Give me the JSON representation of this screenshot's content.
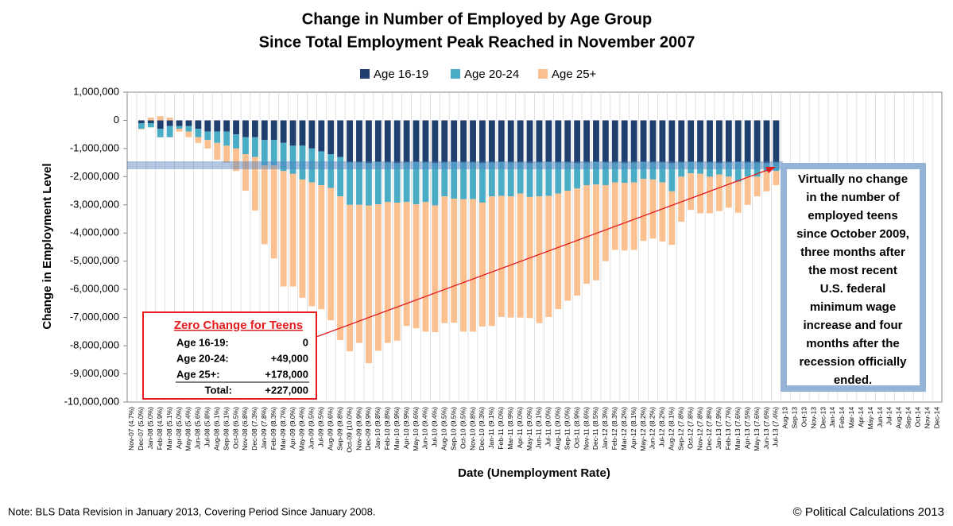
{
  "chart_data": {
    "type": "stacked_bar",
    "title": [
      "Change in Number of Employed by Age Group",
      "Since Total Employment Peak Reached in November 2007"
    ],
    "xlabel": "Date (Unemployment Rate)",
    "ylabel": "Change in Employment Level",
    "note": "Note: BLS Data Revision in January 2013, Covering Period Since January 2008.",
    "credit": "© Political Calculations 2013",
    "categories": [
      "Nov-07 (4.7%)",
      "Dec-07 (5.0%)",
      "Jan-08 (5.0%)",
      "Feb-08 (4.9%)",
      "Mar-08 (5.1%)",
      "Apr-08 (5.0%)",
      "May-08 (5.4%)",
      "Jun-08 (5.6%)",
      "Jul-08 (5.8%)",
      "Aug-08 (6.1%)",
      "Sep-08 (6.1%)",
      "Oct-08 (6.5%)",
      "Nov-08 (6.8%)",
      "Dec-08 (7.3%)",
      "Jan-09 (7.8%)",
      "Feb-09 (8.3%)",
      "Mar-09 (8.7%)",
      "Apr-09 (9.0%)",
      "May-09 (9.4%)",
      "Jun-09 (9.5%)",
      "Jul-09 (9.5%)",
      "Aug-09 (9.6%)",
      "Sep-09 (9.8%)",
      "Oct-09 (10.0%)",
      "Nov-09 (9.9%)",
      "Dec-09 (9.9%)",
      "Jan-10 (9.8%)",
      "Feb-10 (9.8%)",
      "Mar-10 (9.9%)",
      "Apr-10 (9.9%)",
      "May-10 (9.6%)",
      "Jun-10 (9.4%)",
      "Jul-10 (9.4%)",
      "Aug-10 (9.5%)",
      "Sep-10 (9.5%)",
      "Oct-10 (9.5%)",
      "Nov-10 (9.8%)",
      "Dec-10 (9.3%)",
      "Jan-11 (9.1%)",
      "Feb-11 (9.0%)",
      "Mar-11 (8.9%)",
      "Apr-11 (9.0%)",
      "May-11 (9.0%)",
      "Jun-11 (9.1%)",
      "Jul-11 (9.0%)",
      "Aug-11 (9.0%)",
      "Sep-11 (9.0%)",
      "Oct-11 (8.9%)",
      "Nov-11 (8.6%)",
      "Dec-11 (8.5%)",
      "Jan-12 (8.3%)",
      "Feb-12 (8.3%)",
      "Mar-12 (8.2%)",
      "Apr-12 (8.1%)",
      "May-12 (8.2%)",
      "Jun-12 (8.2%)",
      "Jul-12 (8.2%)",
      "Aug-12 (8.1%)",
      "Sep-12 (7.8%)",
      "Oct-12 (7.8%)",
      "Nov-12 (7.8%)",
      "Dec-12 (7.8%)",
      "Jan-13 (7.9%)",
      "Feb-13 (7.7%)",
      "Mar-13 (7.6%)",
      "Apr-13 (7.5%)",
      "May-13 (7.6%)",
      "Jun-13 (7.6%)",
      "Jul-13 (7.4%)",
      "Aug-13",
      "Sep-13",
      "Oct-13",
      "Nov-13",
      "Dec-13",
      "Jan-14",
      "Feb-14",
      "Mar-14",
      "Apr-14",
      "May-14",
      "Jun-14",
      "Jul-14",
      "Aug-14",
      "Sep-14",
      "Oct-14",
      "Nov-14",
      "Dec-14"
    ],
    "series": [
      {
        "name": "Age 16-19",
        "color": "#1f3f6e",
        "values": [
          0,
          -100000,
          -100000,
          -300000,
          -200000,
          -200000,
          -200000,
          -300000,
          -400000,
          -400000,
          -400000,
          -500000,
          -600000,
          -600000,
          -700000,
          -700000,
          -800000,
          -900000,
          -900000,
          -1000000,
          -1100000,
          -1200000,
          -1300000,
          -1500000,
          -1500000,
          -1520000,
          -1480000,
          -1500000,
          -1520000,
          -1500000,
          -1480000,
          -1500000,
          -1520000,
          -1500000,
          -1480000,
          -1500000,
          -1500000,
          -1520000,
          -1500000,
          -1480000,
          -1500000,
          -1500000,
          -1520000,
          -1500000,
          -1480000,
          -1500000,
          -1500000,
          -1520000,
          -1500000,
          -1480000,
          -1500000,
          -1500000,
          -1520000,
          -1500000,
          -1480000,
          -1500000,
          -1500000,
          -1520000,
          -1500000,
          -1480000,
          -1500000,
          -1500000,
          -1520000,
          -1500000,
          -1480000,
          -1500000,
          -1500000,
          -1520000,
          -1500000,
          null,
          null,
          null,
          null,
          null,
          null,
          null,
          null,
          null,
          null,
          null,
          null,
          null,
          null,
          null,
          null,
          null
        ]
      },
      {
        "name": "Age 20-24",
        "color": "#4bacc6",
        "values": [
          0,
          -200000,
          -150000,
          -300000,
          -400000,
          -100000,
          -200000,
          -300000,
          -300000,
          -400000,
          -500000,
          -500000,
          -600000,
          -700000,
          -900000,
          -900000,
          -1000000,
          -1000000,
          -1200000,
          -1200000,
          -1200000,
          -1200000,
          -1400000,
          -1500000,
          -1500000,
          -1500000,
          -1500000,
          -1400000,
          -1400000,
          -1400000,
          -1500000,
          -1400000,
          -1500000,
          -1200000,
          -1300000,
          -1300000,
          -1300000,
          -1400000,
          -1200000,
          -1200000,
          -1200000,
          -1100000,
          -1200000,
          -1200000,
          -1200000,
          -1100000,
          -1000000,
          -900000,
          -800000,
          -800000,
          -800000,
          -700000,
          -700000,
          -700000,
          -600000,
          -600000,
          -700000,
          -1000000,
          -500000,
          -400000,
          -400000,
          -500000,
          -400000,
          -500000,
          -700000,
          -500000,
          -500000,
          -300000,
          -300000,
          null,
          null,
          null,
          null,
          null,
          null,
          null,
          null,
          null,
          null,
          null,
          null,
          null,
          null,
          null,
          null,
          null
        ]
      },
      {
        "name": "Age 25+",
        "color": "#fac090",
        "values": [
          0,
          -20000,
          100000,
          150000,
          100000,
          -100000,
          -200000,
          -200000,
          -300000,
          -600000,
          -600000,
          -800000,
          -1300000,
          -1900000,
          -2800000,
          -3300000,
          -4100000,
          -4000000,
          -4200000,
          -4400000,
          -4400000,
          -4700000,
          -5100000,
          -5200000,
          -4900000,
          -5600000,
          -5200000,
          -5000000,
          -4900000,
          -4400000,
          -4400000,
          -4600000,
          -4500000,
          -4500000,
          -4400000,
          -4700000,
          -4700000,
          -4400000,
          -4600000,
          -4300000,
          -4300000,
          -4400000,
          -4300000,
          -4500000,
          -4300000,
          -4100000,
          -3900000,
          -3800000,
          -3500000,
          -3400000,
          -2700000,
          -2400000,
          -2400000,
          -2400000,
          -2200000,
          -2100000,
          -2100000,
          -1900000,
          -1600000,
          -1300000,
          -1400000,
          -1300000,
          -1300000,
          -1100000,
          -1100000,
          -1000000,
          -700000,
          -700000,
          -500000,
          null,
          null,
          null,
          null,
          null,
          null,
          null,
          null,
          null,
          null,
          null,
          null,
          null,
          null,
          null,
          null,
          null
        ]
      }
    ],
    "ylim": [
      -10000000,
      1000000
    ],
    "yticks": [
      {
        "value": 1000000,
        "label": "1,000,000"
      },
      0,
      {
        "value": -1000000,
        "label": "-1,000,000"
      },
      {
        "value": -2000000,
        "label": "-2,000,000"
      },
      {
        "value": -3000000,
        "label": "-3,000,000"
      },
      {
        "value": -4000000,
        "label": "-4,000,000"
      },
      {
        "value": -5000000,
        "label": "-5,000,000"
      },
      {
        "value": -6000000,
        "label": "-6,000,000"
      },
      {
        "value": -7000000,
        "label": "-7,000,000"
      },
      {
        "value": -8000000,
        "label": "-8,000,000"
      },
      {
        "value": -9000000,
        "label": "-9,000,000"
      },
      {
        "value": -10000000,
        "label": "-10,000,000"
      }
    ],
    "grid": true,
    "legend": "top",
    "box_text": [
      "Virtually no change",
      "in the number of",
      "employed teens",
      "since October 2009,",
      "three months after",
      "the most recent",
      "U.S. federal",
      "minimum wage",
      "increase and four",
      "months after the",
      "recession officially",
      "ended."
    ],
    "table": {
      "title": "Zero Change for Teens",
      "rows": [
        [
          "Age 16-19:",
          "0"
        ],
        [
          "Age 20-24:",
          "+49,000"
        ],
        [
          "Age 25+:",
          "+178,000"
        ],
        [
          "Total:",
          "+227,000"
        ]
      ]
    }
  }
}
